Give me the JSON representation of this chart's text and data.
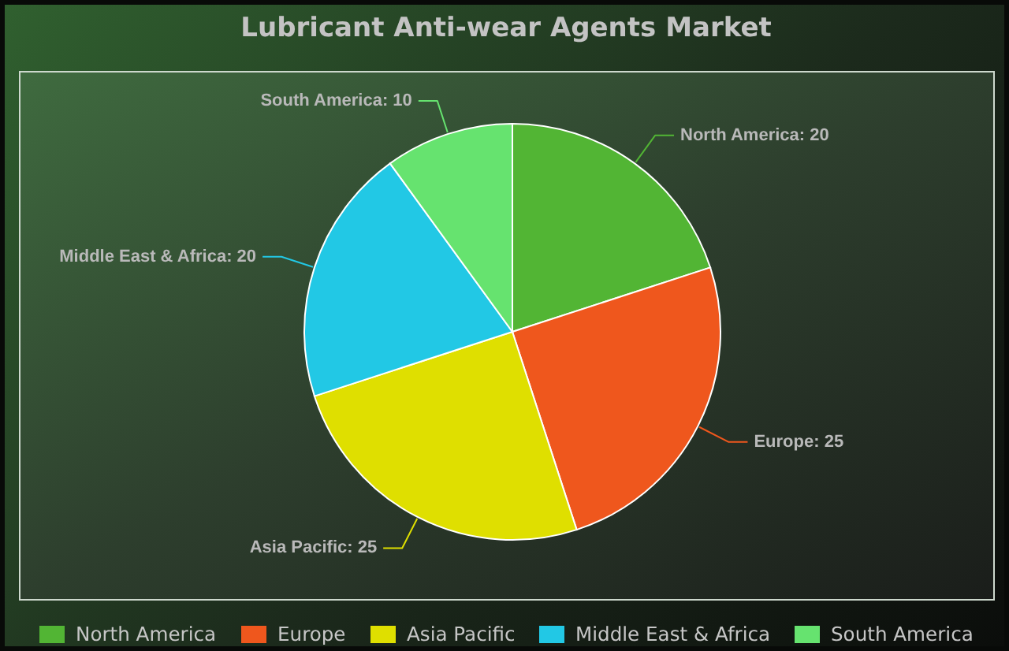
{
  "chart_data": {
    "type": "pie",
    "title": "Lubricant Anti-wear Agents Market",
    "categories": [
      "North America",
      "Europe",
      "Asia Pacific",
      "Middle East & Africa",
      "South America"
    ],
    "values": [
      20,
      25,
      25,
      20,
      10
    ],
    "value_labels": [
      "North America: 20",
      "Europe: 25",
      "Asia Pacific: 25",
      "Middle East & Africa: 20",
      "South America: 10"
    ],
    "colors": [
      "#52b534",
      "#ef571d",
      "#dfdf00",
      "#22c8e5",
      "#66e36f"
    ],
    "legend": "bottom"
  }
}
